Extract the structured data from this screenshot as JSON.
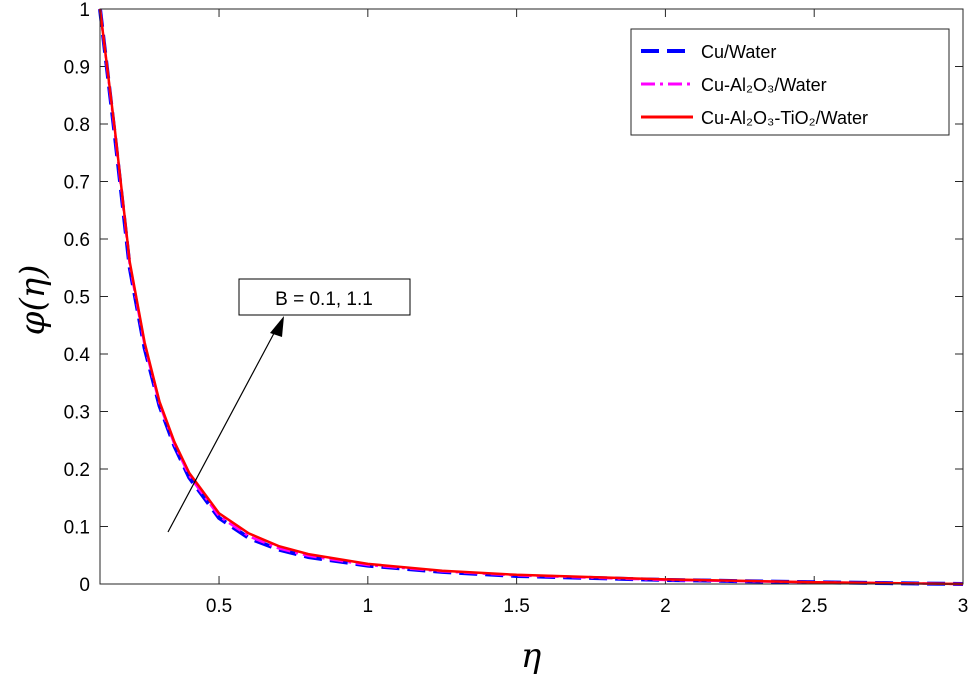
{
  "chart_data": {
    "type": "line",
    "x_label": "η",
    "y_label": "φ(η)",
    "annotation": "B = 0.1, 1.1",
    "x": [
      0.1,
      0.15,
      0.2,
      0.25,
      0.3,
      0.35,
      0.4,
      0.5,
      0.6,
      0.7,
      0.8,
      1,
      1.25,
      1.5,
      2,
      2.5,
      3
    ],
    "series": [
      {
        "name": "Cu/Water",
        "color": "#0000ff",
        "dash": "dashed",
        "values": [
          1,
          0.78,
          0.55,
          0.41,
          0.31,
          0.24,
          0.185,
          0.115,
          0.08,
          0.06,
          0.047,
          0.032,
          0.021,
          0.014,
          0.007,
          0.003,
          0
        ]
      },
      {
        "name": "Cu-Al₂O₃/Water",
        "color": "#ff00ff",
        "dash": "dashdot",
        "values": [
          1,
          0.785,
          0.555,
          0.415,
          0.313,
          0.243,
          0.188,
          0.118,
          0.083,
          0.062,
          0.049,
          0.033,
          0.022,
          0.015,
          0.007,
          0.003,
          0
        ]
      },
      {
        "name": "Cu-Al₂O₃-TiO₂/Water",
        "color": "#ff0000",
        "dash": "solid",
        "values": [
          1,
          0.79,
          0.56,
          0.42,
          0.317,
          0.247,
          0.193,
          0.123,
          0.088,
          0.066,
          0.052,
          0.035,
          0.023,
          0.016,
          0.008,
          0.003,
          0
        ]
      }
    ],
    "xlim": [
      0.1,
      3
    ],
    "xticks": [
      0.5,
      1,
      1.5,
      2,
      2.5,
      3
    ],
    "ylim": [
      0,
      1
    ],
    "yticks": [
      0,
      0.1,
      0.2,
      0.3,
      0.4,
      0.5,
      0.6,
      0.7,
      0.8,
      0.9,
      1
    ],
    "grid": false,
    "legend": "upper right"
  }
}
